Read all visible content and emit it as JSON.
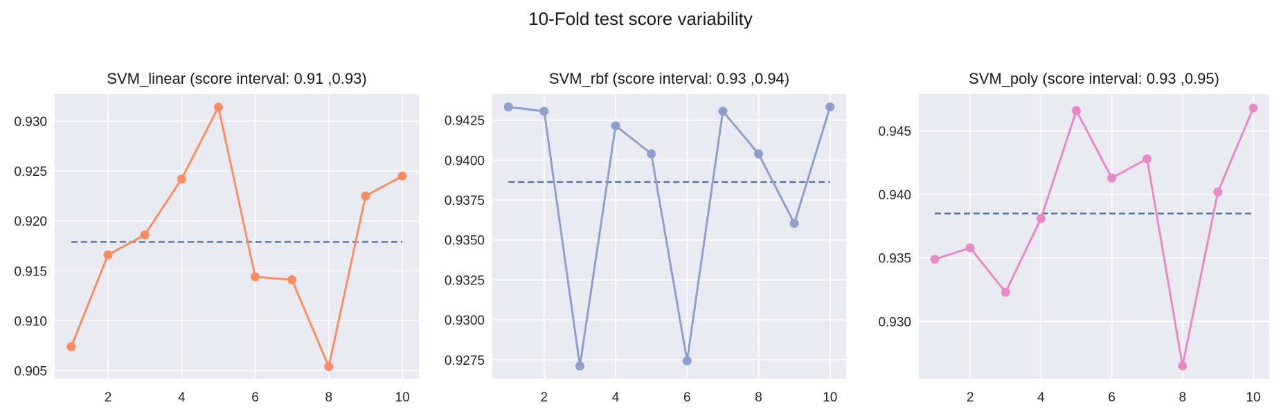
{
  "figure": {
    "title": "10-Fold test score variability",
    "mean_line_color": "#4c72b0"
  },
  "chart_data": [
    {
      "type": "line",
      "title": "SVM_linear (score interval: 0.91 ,0.93)",
      "xlabel": "",
      "ylabel": "",
      "x": [
        1,
        2,
        3,
        4,
        5,
        6,
        7,
        8,
        9,
        10
      ],
      "values": [
        0.9074,
        0.9166,
        0.9186,
        0.9242,
        0.9314,
        0.9144,
        0.9141,
        0.9054,
        0.9225,
        0.9245
      ],
      "mean": 0.9179,
      "color": "#fc8d62",
      "xlim": [
        0.55,
        10.45
      ],
      "ylim": [
        0.9042,
        0.9327
      ],
      "xticks": [
        2,
        4,
        6,
        8,
        10
      ],
      "xtick_labels": [
        "2",
        "4",
        "6",
        "8",
        "10"
      ],
      "yticks": [
        0.905,
        0.91,
        0.915,
        0.92,
        0.925,
        0.93
      ],
      "ytick_labels": [
        "0.905",
        "0.910",
        "0.915",
        "0.920",
        "0.925",
        "0.930"
      ],
      "grid": true
    },
    {
      "type": "line",
      "title": "SVM_rbf (score interval: 0.93 ,0.94)",
      "xlabel": "",
      "ylabel": "",
      "x": [
        1,
        2,
        3,
        4,
        5,
        6,
        7,
        8,
        9,
        10
      ],
      "values": [
        0.94333,
        0.94306,
        0.92711,
        0.94215,
        0.94039,
        0.92743,
        0.94306,
        0.94039,
        0.93604,
        0.94333
      ],
      "mean": 0.93863,
      "color": "#8da0cb",
      "xlim": [
        0.55,
        10.45
      ],
      "ylim": [
        0.92632,
        0.94413
      ],
      "xticks": [
        2,
        4,
        6,
        8,
        10
      ],
      "xtick_labels": [
        "2",
        "4",
        "6",
        "8",
        "10"
      ],
      "yticks": [
        0.9275,
        0.93,
        0.9325,
        0.935,
        0.9375,
        0.94,
        0.9425
      ],
      "ytick_labels": [
        "0.9275",
        "0.9300",
        "0.9325",
        "0.9350",
        "0.9375",
        "0.9400",
        "0.9425"
      ],
      "grid": true
    },
    {
      "type": "line",
      "title": "SVM_poly (score interval: 0.93 ,0.95)",
      "xlabel": "",
      "ylabel": "",
      "x": [
        1,
        2,
        3,
        4,
        5,
        6,
        7,
        8,
        9,
        10
      ],
      "values": [
        0.9349,
        0.9358,
        0.9323,
        0.9381,
        0.9466,
        0.9413,
        0.9428,
        0.9265,
        0.9402,
        0.9468
      ],
      "mean": 0.9385,
      "color": "#e78ac3",
      "xlim": [
        0.55,
        10.45
      ],
      "ylim": [
        0.9255,
        0.9479
      ],
      "xticks": [
        2,
        4,
        6,
        8,
        10
      ],
      "xtick_labels": [
        "2",
        "4",
        "6",
        "8",
        "10"
      ],
      "yticks": [
        0.93,
        0.935,
        0.94,
        0.945
      ],
      "ytick_labels": [
        "0.930",
        "0.935",
        "0.940",
        "0.945"
      ],
      "grid": true
    }
  ]
}
